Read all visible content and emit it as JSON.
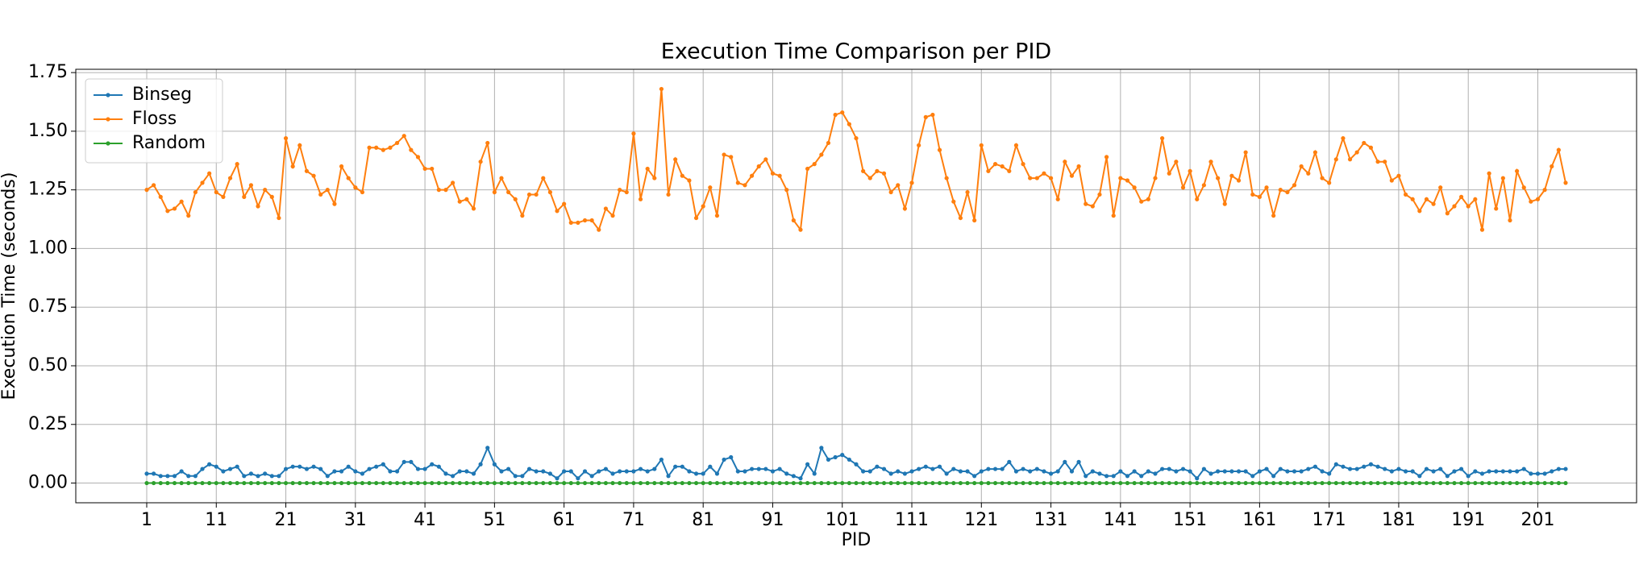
{
  "chart_data": {
    "type": "line",
    "title": "Execution Time Comparison per PID",
    "x_label": "PID",
    "y_label": "Execution Time (seconds)",
    "x": [
      1,
      2,
      3,
      4,
      5,
      6,
      7,
      8,
      9,
      10,
      11,
      12,
      13,
      14,
      15,
      16,
      17,
      18,
      19,
      20,
      21,
      22,
      23,
      24,
      25,
      26,
      27,
      28,
      29,
      30,
      31,
      32,
      33,
      34,
      35,
      36,
      37,
      38,
      39,
      40,
      41,
      42,
      43,
      44,
      45,
      46,
      47,
      48,
      49,
      50,
      51,
      52,
      53,
      54,
      55,
      56,
      57,
      58,
      59,
      60,
      61,
      62,
      63,
      64,
      65,
      66,
      67,
      68,
      69,
      70,
      71,
      72,
      73,
      74,
      75,
      76,
      77,
      78,
      79,
      80,
      81,
      82,
      83,
      84,
      85,
      86,
      87,
      88,
      89,
      90,
      91,
      92,
      93,
      94,
      95,
      96,
      97,
      98,
      99,
      100,
      101,
      102,
      103,
      104,
      105,
      106,
      107,
      108,
      109,
      110,
      111,
      112,
      113,
      114,
      115,
      116,
      117,
      118,
      119,
      120,
      121,
      122,
      123,
      124,
      125,
      126,
      127,
      128,
      129,
      130,
      131,
      132,
      133,
      134,
      135,
      136,
      137,
      138,
      139,
      140,
      141,
      142,
      143,
      144,
      145,
      146,
      147,
      148,
      149,
      150,
      151,
      152,
      153,
      154,
      155,
      156,
      157,
      158,
      159,
      160,
      161,
      162,
      163,
      164,
      165,
      166,
      167,
      168,
      169,
      170,
      171,
      172,
      173,
      174,
      175,
      176,
      177,
      178,
      179,
      180,
      181,
      182,
      183,
      184,
      185,
      186,
      187,
      188,
      189,
      190,
      191,
      192,
      193,
      194,
      195,
      196,
      197,
      198,
      199,
      200,
      201,
      202,
      203,
      204,
      205
    ],
    "series": [
      {
        "name": "Binseg",
        "color": "#1f77b4",
        "values": [
          0.04,
          0.04,
          0.03,
          0.03,
          0.03,
          0.05,
          0.03,
          0.03,
          0.06,
          0.08,
          0.07,
          0.05,
          0.06,
          0.07,
          0.03,
          0.04,
          0.03,
          0.04,
          0.03,
          0.03,
          0.06,
          0.07,
          0.07,
          0.06,
          0.07,
          0.06,
          0.03,
          0.05,
          0.05,
          0.07,
          0.05,
          0.04,
          0.06,
          0.07,
          0.08,
          0.05,
          0.05,
          0.09,
          0.09,
          0.06,
          0.06,
          0.08,
          0.07,
          0.04,
          0.03,
          0.05,
          0.05,
          0.04,
          0.08,
          0.15,
          0.08,
          0.05,
          0.06,
          0.03,
          0.03,
          0.06,
          0.05,
          0.05,
          0.04,
          0.02,
          0.05,
          0.05,
          0.02,
          0.05,
          0.03,
          0.05,
          0.06,
          0.04,
          0.05,
          0.05,
          0.05,
          0.06,
          0.05,
          0.06,
          0.1,
          0.03,
          0.07,
          0.07,
          0.05,
          0.04,
          0.04,
          0.07,
          0.04,
          0.1,
          0.11,
          0.05,
          0.05,
          0.06,
          0.06,
          0.06,
          0.05,
          0.06,
          0.04,
          0.03,
          0.02,
          0.08,
          0.04,
          0.15,
          0.1,
          0.11,
          0.12,
          0.1,
          0.08,
          0.05,
          0.05,
          0.07,
          0.06,
          0.04,
          0.05,
          0.04,
          0.05,
          0.06,
          0.07,
          0.06,
          0.07,
          0.04,
          0.06,
          0.05,
          0.05,
          0.03,
          0.05,
          0.06,
          0.06,
          0.06,
          0.09,
          0.05,
          0.06,
          0.05,
          0.06,
          0.05,
          0.04,
          0.05,
          0.09,
          0.05,
          0.09,
          0.03,
          0.05,
          0.04,
          0.03,
          0.03,
          0.05,
          0.03,
          0.05,
          0.03,
          0.05,
          0.04,
          0.06,
          0.06,
          0.05,
          0.06,
          0.05,
          0.02,
          0.06,
          0.04,
          0.05,
          0.05,
          0.05,
          0.05,
          0.05,
          0.03,
          0.05,
          0.06,
          0.03,
          0.06,
          0.05,
          0.05,
          0.05,
          0.06,
          0.07,
          0.05,
          0.04,
          0.08,
          0.07,
          0.06,
          0.06,
          0.07,
          0.08,
          0.07,
          0.06,
          0.05,
          0.06,
          0.05,
          0.05,
          0.03,
          0.06,
          0.05,
          0.06,
          0.03,
          0.05,
          0.06,
          0.03,
          0.05,
          0.04,
          0.05,
          0.05,
          0.05,
          0.05,
          0.05,
          0.06,
          0.04,
          0.04,
          0.04,
          0.05,
          0.06,
          0.06
        ]
      },
      {
        "name": "Floss",
        "color": "#ff7f0e",
        "values": [
          1.25,
          1.27,
          1.22,
          1.16,
          1.17,
          1.2,
          1.14,
          1.24,
          1.28,
          1.32,
          1.24,
          1.22,
          1.3,
          1.36,
          1.22,
          1.27,
          1.18,
          1.25,
          1.22,
          1.13,
          1.47,
          1.35,
          1.44,
          1.33,
          1.31,
          1.23,
          1.25,
          1.19,
          1.35,
          1.3,
          1.26,
          1.24,
          1.43,
          1.43,
          1.42,
          1.43,
          1.45,
          1.48,
          1.42,
          1.39,
          1.34,
          1.34,
          1.25,
          1.25,
          1.28,
          1.2,
          1.21,
          1.17,
          1.37,
          1.45,
          1.24,
          1.3,
          1.24,
          1.21,
          1.14,
          1.23,
          1.23,
          1.3,
          1.24,
          1.16,
          1.19,
          1.11,
          1.11,
          1.12,
          1.12,
          1.08,
          1.17,
          1.14,
          1.25,
          1.24,
          1.49,
          1.21,
          1.34,
          1.3,
          1.68,
          1.23,
          1.38,
          1.31,
          1.29,
          1.13,
          1.18,
          1.26,
          1.14,
          1.4,
          1.39,
          1.28,
          1.27,
          1.31,
          1.35,
          1.38,
          1.32,
          1.31,
          1.25,
          1.12,
          1.08,
          1.34,
          1.36,
          1.4,
          1.45,
          1.57,
          1.58,
          1.53,
          1.47,
          1.33,
          1.3,
          1.33,
          1.32,
          1.24,
          1.27,
          1.17,
          1.28,
          1.44,
          1.56,
          1.57,
          1.42,
          1.3,
          1.2,
          1.13,
          1.24,
          1.12,
          1.44,
          1.33,
          1.36,
          1.35,
          1.33,
          1.44,
          1.36,
          1.3,
          1.3,
          1.32,
          1.3,
          1.21,
          1.37,
          1.31,
          1.35,
          1.19,
          1.18,
          1.23,
          1.39,
          1.14,
          1.3,
          1.29,
          1.26,
          1.2,
          1.21,
          1.3,
          1.47,
          1.32,
          1.37,
          1.26,
          1.33,
          1.21,
          1.27,
          1.37,
          1.3,
          1.19,
          1.31,
          1.29,
          1.41,
          1.23,
          1.22,
          1.26,
          1.14,
          1.25,
          1.24,
          1.27,
          1.35,
          1.32,
          1.41,
          1.3,
          1.28,
          1.38,
          1.47,
          1.38,
          1.41,
          1.45,
          1.43,
          1.37,
          1.37,
          1.29,
          1.31,
          1.23,
          1.21,
          1.16,
          1.21,
          1.19,
          1.26,
          1.15,
          1.18,
          1.22,
          1.18,
          1.21,
          1.08,
          1.32,
          1.17,
          1.3,
          1.12,
          1.33,
          1.26,
          1.2,
          1.21,
          1.25,
          1.35,
          1.42,
          1.28
        ]
      },
      {
        "name": "Random",
        "color": "#2ca02c",
        "values": [
          0,
          0,
          0,
          0,
          0,
          0,
          0,
          0,
          0,
          0,
          0,
          0,
          0,
          0,
          0,
          0,
          0,
          0,
          0,
          0,
          0,
          0,
          0,
          0,
          0,
          0,
          0,
          0,
          0,
          0,
          0,
          0,
          0,
          0,
          0,
          0,
          0,
          0,
          0,
          0,
          0,
          0,
          0,
          0,
          0,
          0,
          0,
          0,
          0,
          0,
          0,
          0,
          0,
          0,
          0,
          0,
          0,
          0,
          0,
          0,
          0,
          0,
          0,
          0,
          0,
          0,
          0,
          0,
          0,
          0,
          0,
          0,
          0,
          0,
          0,
          0,
          0,
          0,
          0,
          0,
          0,
          0,
          0,
          0,
          0,
          0,
          0,
          0,
          0,
          0,
          0,
          0,
          0,
          0,
          0,
          0,
          0,
          0,
          0,
          0,
          0,
          0,
          0,
          0,
          0,
          0,
          0,
          0,
          0,
          0,
          0,
          0,
          0,
          0,
          0,
          0,
          0,
          0,
          0,
          0,
          0,
          0,
          0,
          0,
          0,
          0,
          0,
          0,
          0,
          0,
          0,
          0,
          0,
          0,
          0,
          0,
          0,
          0,
          0,
          0,
          0,
          0,
          0,
          0,
          0,
          0,
          0,
          0,
          0,
          0,
          0,
          0,
          0,
          0,
          0,
          0,
          0,
          0,
          0,
          0,
          0,
          0,
          0,
          0,
          0,
          0,
          0,
          0,
          0,
          0,
          0,
          0,
          0,
          0,
          0,
          0,
          0,
          0,
          0,
          0,
          0,
          0,
          0,
          0,
          0,
          0,
          0,
          0,
          0,
          0,
          0,
          0,
          0,
          0,
          0,
          0,
          0,
          0,
          0,
          0,
          0,
          0,
          0,
          0,
          0
        ]
      }
    ],
    "xlim": [
      -9.2,
      215.2
    ],
    "xticks": [
      1,
      11,
      21,
      31,
      41,
      51,
      61,
      71,
      81,
      91,
      101,
      111,
      121,
      131,
      141,
      151,
      161,
      171,
      181,
      191,
      201
    ],
    "ylim": [
      -0.084,
      1.764
    ],
    "yticks": [
      {
        "value": 0,
        "label": "0.00"
      },
      {
        "value": 0.25,
        "label": "0.25"
      },
      {
        "value": 0.5,
        "label": "0.50"
      },
      {
        "value": 0.75,
        "label": "0.75"
      },
      {
        "value": 1,
        "label": "1.00"
      },
      {
        "value": 1.25,
        "label": "1.25"
      },
      {
        "value": 1.5,
        "label": "1.50"
      },
      {
        "value": 1.75,
        "label": "1.75"
      }
    ],
    "grid": true,
    "legend": "upper left"
  }
}
